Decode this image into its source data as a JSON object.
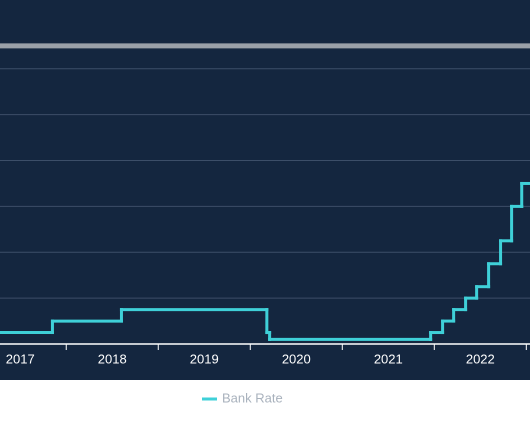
{
  "chart_data": {
    "type": "step",
    "x": [
      2017.28,
      2017.85,
      2018.6,
      2020.18,
      2020.21,
      2021.96,
      2022.09,
      2022.21,
      2022.34,
      2022.46,
      2022.59,
      2022.72,
      2022.84,
      2022.95
    ],
    "series": [
      {
        "name": "Bank Rate",
        "color": "#3fd0d8",
        "values": [
          0.25,
          0.5,
          0.75,
          0.25,
          0.1,
          0.25,
          0.5,
          0.75,
          1.0,
          1.25,
          1.75,
          2.25,
          3.0,
          3.5
        ]
      }
    ],
    "hlines": [
      {
        "value": 6.5,
        "color": "#9aa0a8"
      }
    ],
    "xlim": [
      2017.28,
      2023.04
    ],
    "xticks": [
      {
        "value": 2017.5,
        "label": "2017"
      },
      {
        "value": 2018.5,
        "label": "2018"
      },
      {
        "value": 2019.5,
        "label": "2019"
      },
      {
        "value": 2020.5,
        "label": "2020"
      },
      {
        "value": 2021.5,
        "label": "2021"
      },
      {
        "value": 2022.5,
        "label": "2022"
      }
    ],
    "xdividers": [
      2018,
      2019,
      2020,
      2021,
      2022,
      2023
    ],
    "ylim": [
      0,
      7.5
    ],
    "yticks": [
      1,
      2,
      3,
      4,
      5,
      6
    ],
    "grid": true
  }
}
